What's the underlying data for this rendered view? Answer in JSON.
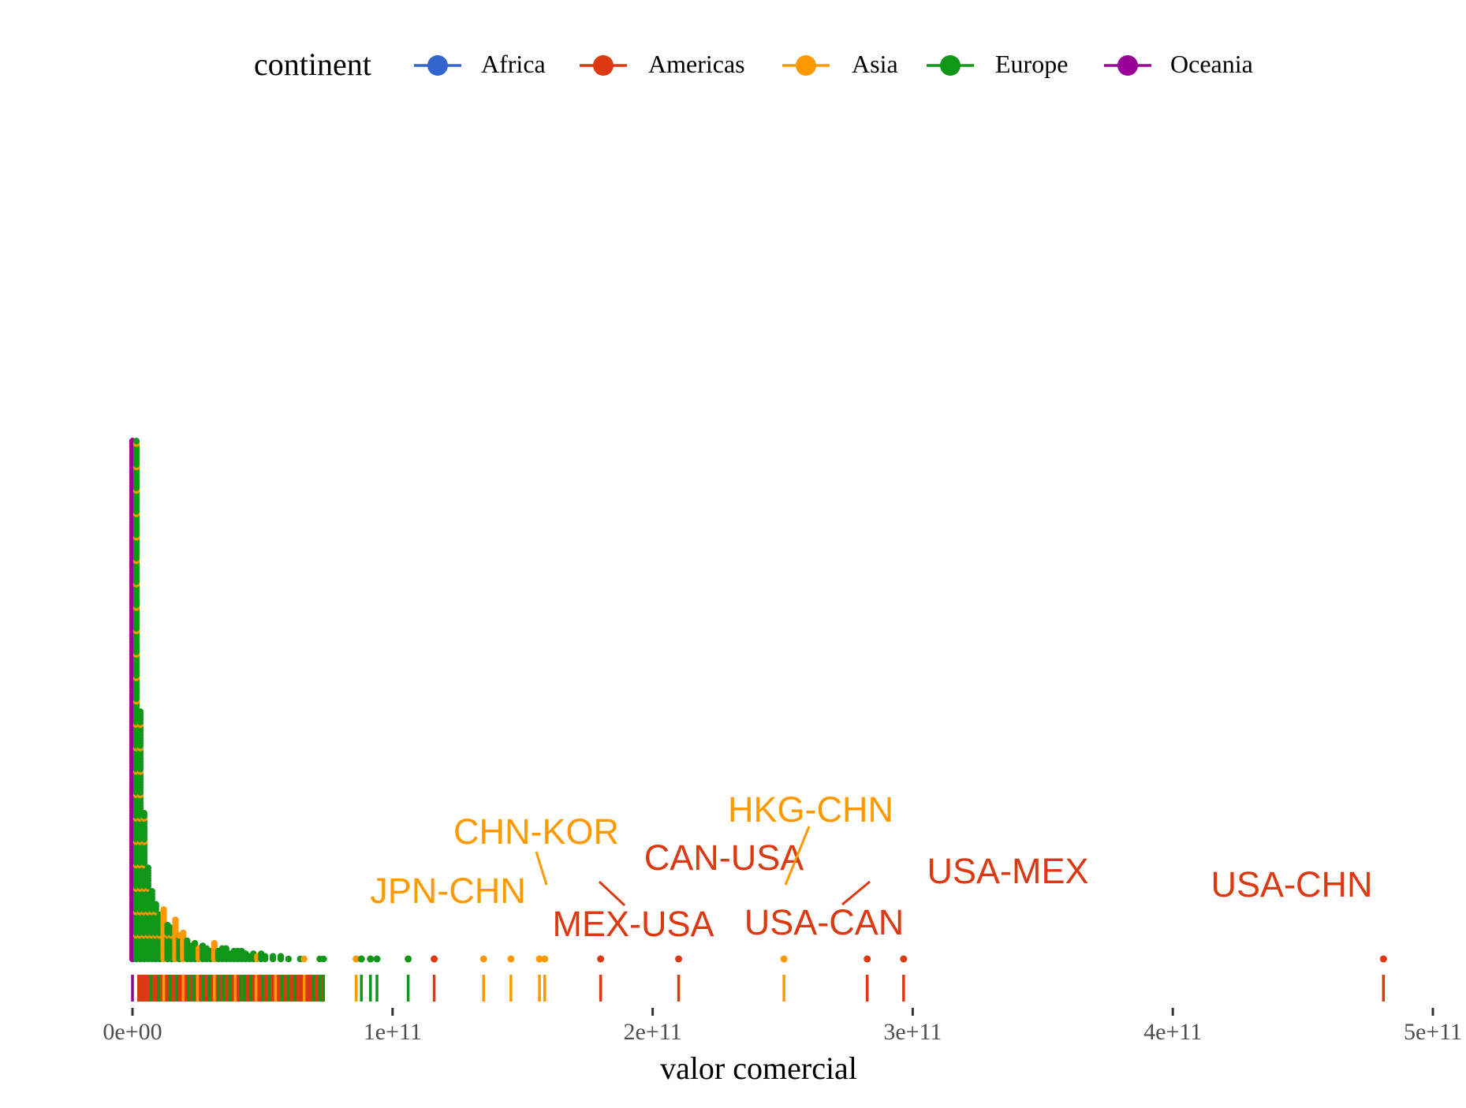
{
  "chart_data": {
    "type": "scatter",
    "subtype": "dot-plot with rug",
    "xlabel": "valor comercial",
    "xlim": [
      0,
      500000000000
    ],
    "x_ticks": [
      {
        "value": 0,
        "label": "0e+00"
      },
      {
        "value": 100000000000,
        "label": "1e+11"
      },
      {
        "value": 200000000000,
        "label": "2e+11"
      },
      {
        "value": 300000000000,
        "label": "3e+11"
      },
      {
        "value": 400000000000,
        "label": "4e+11"
      },
      {
        "value": 500000000000,
        "label": "5e+11"
      }
    ],
    "grid": false,
    "legend": {
      "title": "continent",
      "position": "top",
      "entries": [
        {
          "name": "Africa",
          "color": "#3366CC"
        },
        {
          "name": "Americas",
          "color": "#DC3912"
        },
        {
          "name": "Asia",
          "color": "#FF9900"
        },
        {
          "name": "Europe",
          "color": "#109618"
        },
        {
          "name": "Oceania",
          "color": "#990099"
        }
      ]
    },
    "dense_stacks": [
      {
        "x": 0,
        "count": 200,
        "continent": "Oceania"
      },
      {
        "x": 1500000000,
        "count": 200,
        "continent": "Europe"
      },
      {
        "x": 3000000000,
        "count": 96,
        "continent": "Europe"
      },
      {
        "x": 4500000000,
        "count": 57,
        "continent": "Europe"
      },
      {
        "x": 6000000000,
        "count": 36,
        "continent": "Europe"
      },
      {
        "x": 7500000000,
        "count": 27,
        "continent": "Europe"
      },
      {
        "x": 9000000000,
        "count": 22,
        "continent": "Europe"
      },
      {
        "x": 10500000000,
        "count": 18,
        "continent": "Europe"
      },
      {
        "x": 12000000000,
        "count": 20,
        "continent": "Asia"
      },
      {
        "x": 13500000000,
        "count": 14,
        "continent": "Europe"
      },
      {
        "x": 15000000000,
        "count": 13,
        "continent": "Europe"
      },
      {
        "x": 16500000000,
        "count": 16,
        "continent": "Asia"
      },
      {
        "x": 18000000000,
        "count": 10,
        "continent": "Europe"
      },
      {
        "x": 19500000000,
        "count": 11,
        "continent": "Asia"
      },
      {
        "x": 21000000000,
        "count": 8,
        "continent": "Europe"
      },
      {
        "x": 22500000000,
        "count": 6,
        "continent": "Europe"
      },
      {
        "x": 24000000000,
        "count": 7,
        "continent": "Europe"
      },
      {
        "x": 25500000000,
        "count": 5,
        "continent": "Asia"
      },
      {
        "x": 27000000000,
        "count": 6,
        "continent": "Europe"
      },
      {
        "x": 28500000000,
        "count": 5,
        "continent": "Europe"
      },
      {
        "x": 30000000000,
        "count": 4,
        "continent": "Europe"
      },
      {
        "x": 31500000000,
        "count": 7,
        "continent": "Asia"
      },
      {
        "x": 33000000000,
        "count": 4,
        "continent": "Europe"
      },
      {
        "x": 34500000000,
        "count": 5,
        "continent": "Europe"
      },
      {
        "x": 36000000000,
        "count": 5,
        "continent": "Europe"
      },
      {
        "x": 37500000000,
        "count": 3,
        "continent": "Europe"
      },
      {
        "x": 39000000000,
        "count": 4,
        "continent": "Europe"
      },
      {
        "x": 40500000000,
        "count": 4,
        "continent": "Europe"
      },
      {
        "x": 42000000000,
        "count": 4,
        "continent": "Europe"
      },
      {
        "x": 43500000000,
        "count": 3,
        "continent": "Europe"
      },
      {
        "x": 45000000000,
        "count": 2,
        "continent": "Europe"
      },
      {
        "x": 46500000000,
        "count": 3,
        "continent": "Europe"
      },
      {
        "x": 48000000000,
        "count": 2,
        "continent": "Asia"
      },
      {
        "x": 49500000000,
        "count": 3,
        "continent": "Europe"
      },
      {
        "x": 51000000000,
        "count": 2,
        "continent": "Europe"
      },
      {
        "x": 54000000000,
        "count": 2,
        "continent": "Europe"
      },
      {
        "x": 57000000000,
        "count": 2,
        "continent": "Europe"
      },
      {
        "x": 60000000000,
        "count": 1,
        "continent": "Europe"
      },
      {
        "x": 64500000000,
        "count": 1,
        "continent": "Europe"
      },
      {
        "x": 66000000000,
        "count": 1,
        "continent": "Asia"
      },
      {
        "x": 72000000000,
        "count": 1,
        "continent": "Europe"
      },
      {
        "x": 73500000000,
        "count": 1,
        "continent": "Europe"
      }
    ],
    "points": [
      {
        "x": 86000000000,
        "continent": "Asia"
      },
      {
        "x": 88000000000,
        "continent": "Europe"
      },
      {
        "x": 91500000000,
        "continent": "Europe"
      },
      {
        "x": 94000000000,
        "continent": "Europe"
      },
      {
        "x": 106000000000,
        "continent": "Europe"
      },
      {
        "x": 116000000000,
        "continent": "Americas"
      },
      {
        "x": 135000000000,
        "continent": "Asia"
      },
      {
        "x": 145500000000,
        "continent": "Asia",
        "label": "JPN-CHN"
      },
      {
        "x": 156500000000,
        "continent": "Asia"
      },
      {
        "x": 158500000000,
        "continent": "Asia",
        "label": "CHN-KOR"
      },
      {
        "x": 180000000000,
        "continent": "Americas",
        "label": "MEX-USA"
      },
      {
        "x": 210000000000,
        "continent": "Americas",
        "label": "CAN-USA"
      },
      {
        "x": 250500000000,
        "continent": "Asia",
        "label": "HKG-CHN"
      },
      {
        "x": 282500000000,
        "continent": "Americas",
        "label": "USA-CAN"
      },
      {
        "x": 296500000000,
        "continent": "Americas",
        "label": "USA-MEX"
      },
      {
        "x": 481000000000,
        "continent": "Americas",
        "label": "USA-CHN"
      }
    ],
    "rug_dense": [
      {
        "x": 0,
        "continent": "Oceania"
      },
      {
        "x": 7000000000,
        "continent": "Europe"
      },
      {
        "x": 10000000000,
        "continent": "Europe"
      },
      {
        "x": 12000000000,
        "continent": "Asia"
      },
      {
        "x": 14500000000,
        "continent": "Europe"
      },
      {
        "x": 17000000000,
        "continent": "Europe"
      },
      {
        "x": 19500000000,
        "continent": "Asia"
      },
      {
        "x": 21500000000,
        "continent": "Europe"
      },
      {
        "x": 23500000000,
        "continent": "Europe"
      },
      {
        "x": 25000000000,
        "continent": "Asia"
      },
      {
        "x": 27000000000,
        "continent": "Europe"
      },
      {
        "x": 29500000000,
        "continent": "Europe"
      },
      {
        "x": 31500000000,
        "continent": "Asia"
      },
      {
        "x": 33000000000,
        "continent": "Europe"
      },
      {
        "x": 35000000000,
        "continent": "Europe"
      },
      {
        "x": 37500000000,
        "continent": "Europe"
      },
      {
        "x": 39500000000,
        "continent": "Asia"
      },
      {
        "x": 41500000000,
        "continent": "Europe"
      },
      {
        "x": 43000000000,
        "continent": "Europe"
      },
      {
        "x": 45500000000,
        "continent": "Europe"
      },
      {
        "x": 47500000000,
        "continent": "Asia"
      },
      {
        "x": 50000000000,
        "continent": "Europe"
      },
      {
        "x": 52500000000,
        "continent": "Europe"
      },
      {
        "x": 55000000000,
        "continent": "Asia"
      },
      {
        "x": 57500000000,
        "continent": "Europe"
      },
      {
        "x": 60000000000,
        "continent": "Europe"
      },
      {
        "x": 62500000000,
        "continent": "Europe"
      },
      {
        "x": 66000000000,
        "continent": "Asia"
      },
      {
        "x": 69500000000,
        "continent": "Europe"
      },
      {
        "x": 72000000000,
        "continent": "Europe"
      },
      {
        "x": 73500000000,
        "continent": "Europe"
      }
    ],
    "annotations": [
      {
        "text": "JPN-CHN",
        "color": "#FF9900"
      },
      {
        "text": "CHN-KOR",
        "color": "#FF9900"
      },
      {
        "text": "MEX-USA",
        "color": "#DC3912"
      },
      {
        "text": "CAN-USA",
        "color": "#DC3912"
      },
      {
        "text": "HKG-CHN",
        "color": "#FF9900"
      },
      {
        "text": "USA-CAN",
        "color": "#DC3912"
      },
      {
        "text": "USA-MEX",
        "color": "#DC3912"
      },
      {
        "text": "USA-CHN",
        "color": "#DC3912"
      }
    ]
  }
}
